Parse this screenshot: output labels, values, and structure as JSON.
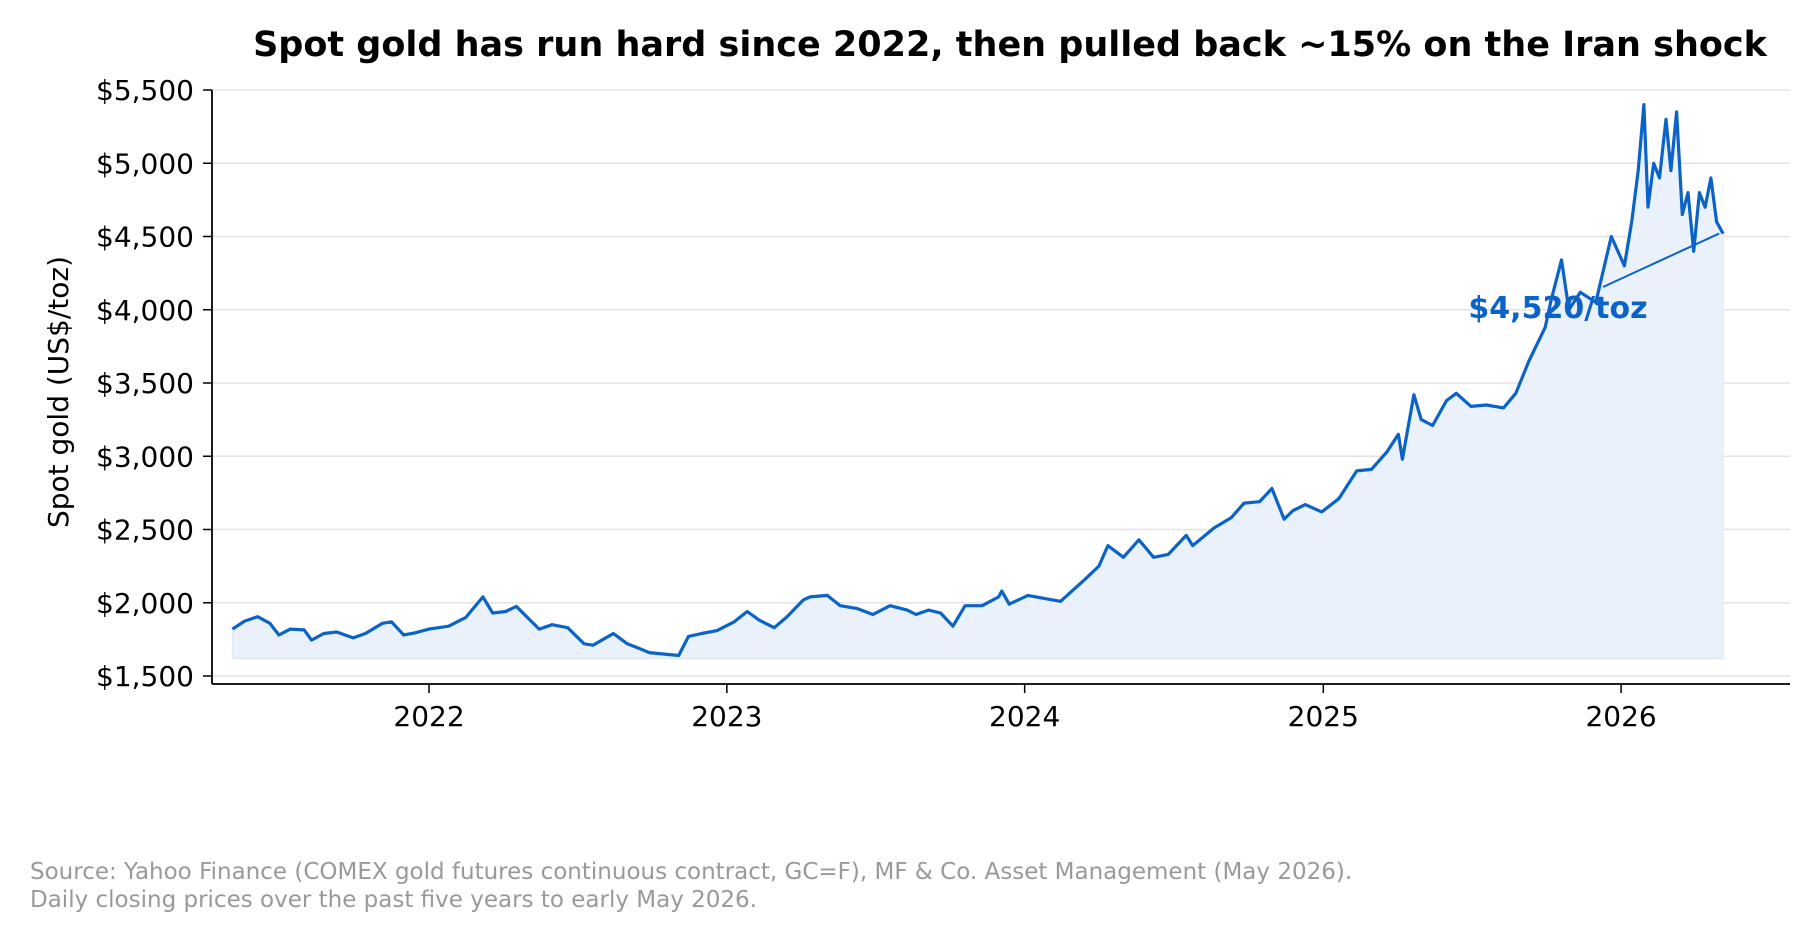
{
  "chart_data": {
    "type": "area",
    "title": "Spot gold has run hard since 2022, then pulled back ~15% on the Iran shock",
    "ylabel": "Spot gold (US$/toz)",
    "xlabel": "",
    "ylim": [
      1500,
      5500
    ],
    "xlim": [
      "2021-04-10",
      "2026-07-27"
    ],
    "yticks": [
      1500,
      2000,
      2500,
      3000,
      3500,
      4000,
      4500,
      5000,
      5500
    ],
    "ytick_labels": [
      "$1,500",
      "$2,000",
      "$2,500",
      "$3,000",
      "$3,500",
      "$4,000",
      "$4,500",
      "$5,000",
      "$5,500"
    ],
    "xticks": [
      "2022-01-01",
      "2023-01-01",
      "2024-01-01",
      "2025-01-01",
      "2026-01-01"
    ],
    "xtick_labels": [
      "2022",
      "2023",
      "2024",
      "2025",
      "2026"
    ],
    "grid": "horizontal",
    "fill_baseline": 1620,
    "annotation": {
      "text": "$4,520/toz",
      "target_x": "2026-05-06",
      "target_y": 4520
    },
    "series": [
      {
        "x": [
          "2021-05-05",
          "2021-05-20",
          "2021-06-05",
          "2021-06-20",
          "2021-07-01",
          "2021-07-15",
          "2021-08-01",
          "2021-08-10",
          "2021-08-25",
          "2021-09-10",
          "2021-09-30",
          "2021-10-15",
          "2021-11-05",
          "2021-11-16",
          "2021-12-01",
          "2021-12-15",
          "2022-01-01",
          "2022-01-25",
          "2022-02-15",
          "2022-03-08",
          "2022-03-20",
          "2022-04-05",
          "2022-04-18",
          "2022-05-05",
          "2022-05-16",
          "2022-06-01",
          "2022-06-20",
          "2022-07-10",
          "2022-07-21",
          "2022-08-15",
          "2022-09-01",
          "2022-09-15",
          "2022-09-28",
          "2022-10-15",
          "2022-11-03",
          "2022-11-15",
          "2022-12-01",
          "2022-12-20",
          "2023-01-10",
          "2023-01-26",
          "2023-02-10",
          "2023-02-28",
          "2023-03-15",
          "2023-04-05",
          "2023-04-13",
          "2023-05-04",
          "2023-05-20",
          "2023-06-10",
          "2023-06-29",
          "2023-07-20",
          "2023-08-10",
          "2023-08-21",
          "2023-09-05",
          "2023-09-20",
          "2023-10-05",
          "2023-10-20",
          "2023-11-10",
          "2023-11-30",
          "2023-12-04",
          "2023-12-13",
          "2024-01-05",
          "2024-01-25",
          "2024-02-14",
          "2024-03-01",
          "2024-03-15",
          "2024-04-01",
          "2024-04-12",
          "2024-05-01",
          "2024-05-20",
          "2024-06-07",
          "2024-06-25",
          "2024-07-17",
          "2024-07-25",
          "2024-08-20",
          "2024-09-10",
          "2024-09-26",
          "2024-10-15",
          "2024-10-30",
          "2024-11-14",
          "2024-11-25",
          "2024-12-10",
          "2024-12-30",
          "2025-01-20",
          "2025-02-11",
          "2025-03-01",
          "2025-03-20",
          "2025-04-03",
          "2025-04-08",
          "2025-04-22",
          "2025-05-01",
          "2025-05-15",
          "2025-06-01",
          "2025-06-13",
          "2025-07-01",
          "2025-07-20",
          "2025-08-10",
          "2025-08-25",
          "2025-09-10",
          "2025-09-30",
          "2025-10-07",
          "2025-10-20",
          "2025-10-29",
          "2025-11-12",
          "2025-12-01",
          "2025-12-20",
          "2026-01-05",
          "2026-01-14",
          "2026-01-22",
          "2026-01-29",
          "2026-02-03",
          "2026-02-10",
          "2026-02-17",
          "2026-02-25",
          "2026-03-03",
          "2026-03-10",
          "2026-03-17",
          "2026-03-24",
          "2026-03-31",
          "2026-04-07",
          "2026-04-14",
          "2026-04-21",
          "2026-04-28",
          "2026-05-06"
        ],
        "values": [
          1820,
          1875,
          1905,
          1860,
          1780,
          1820,
          1815,
          1745,
          1790,
          1800,
          1760,
          1790,
          1860,
          1870,
          1780,
          1795,
          1820,
          1840,
          1900,
          2040,
          1930,
          1940,
          1975,
          1880,
          1820,
          1850,
          1830,
          1720,
          1710,
          1790,
          1720,
          1690,
          1660,
          1650,
          1640,
          1770,
          1790,
          1810,
          1870,
          1940,
          1880,
          1830,
          1900,
          2020,
          2040,
          2050,
          1980,
          1960,
          1920,
          1980,
          1950,
          1920,
          1950,
          1930,
          1840,
          1980,
          1980,
          2040,
          2080,
          1990,
          2050,
          2030,
          2010,
          2090,
          2160,
          2250,
          2390,
          2310,
          2430,
          2310,
          2330,
          2460,
          2390,
          2510,
          2580,
          2680,
          2690,
          2780,
          2570,
          2630,
          2670,
          2620,
          2710,
          2900,
          2910,
          3030,
          3150,
          2980,
          3420,
          3250,
          3210,
          3380,
          3430,
          3340,
          3350,
          3330,
          3430,
          3650,
          3880,
          4060,
          4340,
          4000,
          4120,
          4050,
          4500,
          4300,
          4600,
          4950,
          5400,
          4700,
          5000,
          4900,
          5300,
          4950,
          5350,
          4650,
          4800,
          4400,
          4800,
          4700,
          4900,
          4600,
          4520
        ]
      }
    ]
  },
  "source": {
    "line1": "Source: Yahoo Finance (COMEX gold futures continuous contract, GC=F), MF & Co. Asset Management (May 2026).",
    "line2": "Daily closing prices over the past five years to early May 2026."
  },
  "colors": {
    "line": "#0b63c8",
    "fill": "#eaf1fb",
    "grid": "#e3e3e3",
    "axis": "#000000",
    "annotation": "#0b63c8",
    "source_text": "#999999"
  }
}
